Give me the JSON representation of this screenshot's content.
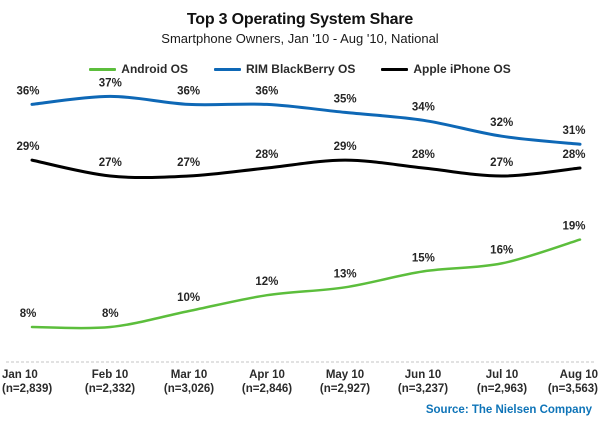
{
  "header": {
    "title": "Top 3 Operating System Share",
    "subtitle": "Smartphone Owners, Jan '10 - Aug '10, National"
  },
  "source_label": "Source: The Nielsen Company",
  "colors": {
    "android_green": "#5cbe3c",
    "blackberry_blue": "#0e68b6",
    "apple_black": "#000000",
    "source_text_blue": "#0e74b8",
    "separator_gray": "#c5c5c5",
    "label_text": "#262626"
  },
  "chart_data": {
    "type": "line",
    "title": "Top 3 Operating System Share",
    "subtitle": "Smartphone Owners, Jan '10 - Aug '10, National",
    "xlabel": "",
    "ylabel": "",
    "categories": [
      "Jan 10",
      "Feb 10",
      "Mar 10",
      "Apr 10",
      "May 10",
      "Jun 10",
      "Jul 10",
      "Aug 10"
    ],
    "sample_labels": [
      "(n=2,839)",
      "(n=2,332)",
      "(n=3,026)",
      "(n=2,846)",
      "(n=2,927)",
      "(n=3,237)",
      "(n=2,963)",
      "(n=3,563)"
    ],
    "series": [
      {
        "name": "Android OS",
        "color": "#5cbe3c",
        "values": [
          8,
          8,
          10,
          12,
          13,
          15,
          16,
          19
        ]
      },
      {
        "name": "RIM BlackBerry OS",
        "color": "#0e68b6",
        "values": [
          36,
          37,
          36,
          36,
          35,
          34,
          32,
          31
        ]
      },
      {
        "name": "Apple iPhone OS",
        "color": "#000000",
        "values": [
          29,
          27,
          27,
          28,
          29,
          28,
          27,
          28
        ]
      }
    ],
    "data_label_format": "{value}%",
    "ylim": [
      3.5,
      40
    ],
    "grid": false,
    "y_axis_visible": false,
    "legend_position": "top",
    "smoothed_lines": true
  }
}
